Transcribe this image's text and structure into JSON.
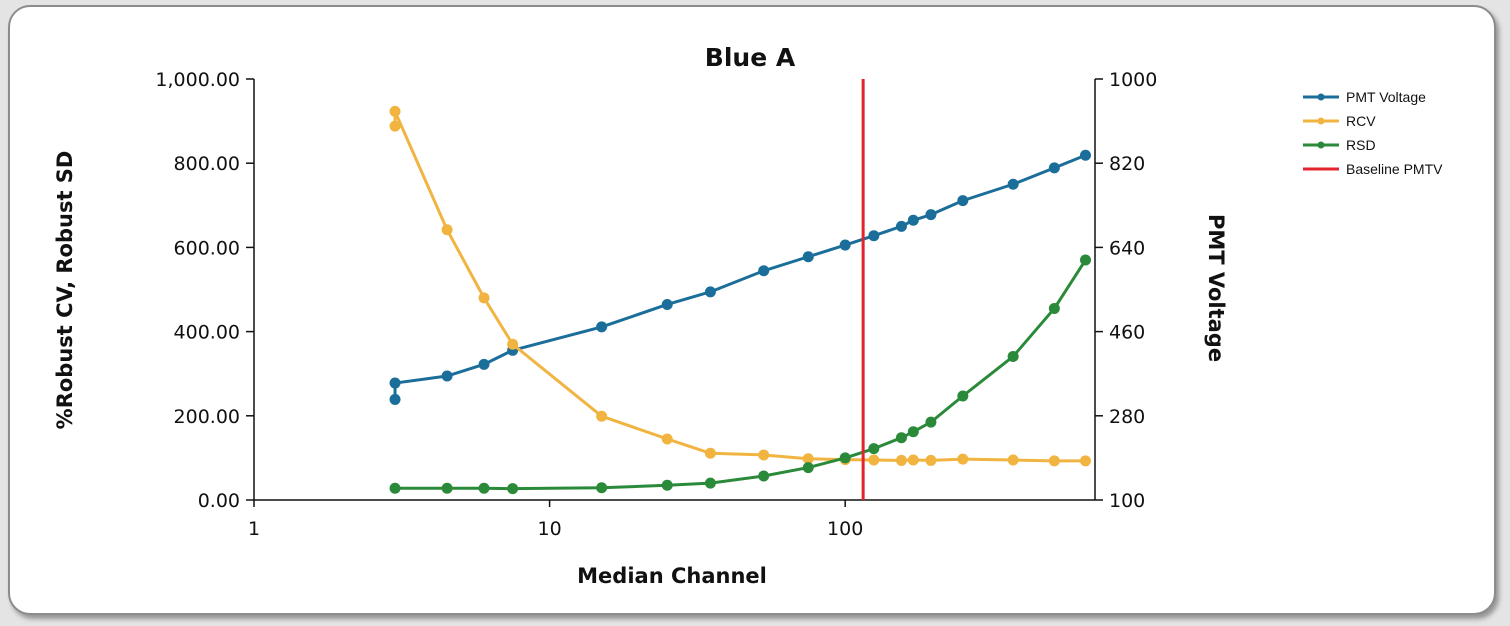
{
  "chart_data": {
    "type": "line",
    "title": "Blue A",
    "xlabel": "Median Channel",
    "ylabel": "%Robust CV, Robust SD",
    "y2label": "PMT Voltage",
    "xscale": "log",
    "xlim": [
      1,
      700
    ],
    "ylim": [
      0,
      1000
    ],
    "y2lim": [
      100,
      1000
    ],
    "x_ticks": [
      "1",
      "10",
      "100"
    ],
    "y_ticks": [
      "0.00",
      "200.00",
      "400.00",
      "600.00",
      "800.00",
      "1,000.00"
    ],
    "y2_ticks": [
      "100",
      "280",
      "460",
      "640",
      "820",
      "1000"
    ],
    "grid": false,
    "legend_position": "right",
    "series": [
      {
        "name": "PMT Voltage",
        "axis": "right",
        "color": "#1a6e99",
        "x": [
          3,
          3,
          4.5,
          6,
          7.5,
          15,
          25,
          35,
          53,
          75,
          100,
          125,
          155,
          170,
          195,
          250,
          370,
          510,
          650
        ],
        "y": [
          315,
          350,
          365,
          390,
          420,
          470,
          518,
          545,
          590,
          620,
          645,
          665,
          685,
          698,
          710,
          740,
          775,
          810,
          837
        ]
      },
      {
        "name": "RCV",
        "axis": "left",
        "color": "#f2b441",
        "x": [
          3,
          3,
          4.5,
          6,
          7.5,
          15,
          25,
          35,
          53,
          75,
          100,
          125,
          155,
          170,
          195,
          250,
          370,
          510,
          650
        ],
        "y": [
          888,
          923,
          642,
          480,
          370,
          199,
          145,
          111,
          107,
          98,
          96,
          95,
          94,
          95,
          94,
          97,
          95,
          93,
          93
        ]
      },
      {
        "name": "RSD",
        "axis": "left",
        "color": "#2a8a3a",
        "x": [
          3,
          4.5,
          6,
          7.5,
          15,
          25,
          35,
          53,
          75,
          100,
          125,
          155,
          170,
          195,
          250,
          370,
          510,
          650
        ],
        "y": [
          28,
          28,
          28,
          27,
          29,
          35,
          40,
          57,
          77,
          100,
          122,
          148,
          162,
          185,
          247,
          341,
          455,
          570
        ]
      }
    ],
    "reference_lines": [
      {
        "name": "Baseline PMTV",
        "color": "#e3232e",
        "x": 115
      }
    ]
  }
}
